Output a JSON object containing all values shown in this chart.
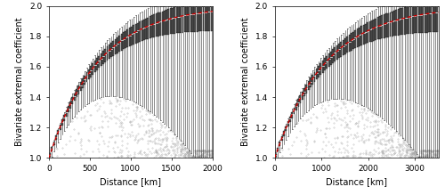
{
  "panel1": {
    "xmax": 2000,
    "xticks": [
      0,
      500,
      1000,
      1500,
      2000
    ],
    "n_bins": 80,
    "curve_scale": 600
  },
  "panel2": {
    "xmax": 3500,
    "xticks": [
      0,
      1000,
      2000,
      3000
    ],
    "n_bins": 80,
    "curve_scale": 1100
  },
  "ylim": [
    1.0,
    2.0
  ],
  "yticks": [
    1.0,
    1.2,
    1.4,
    1.6,
    1.8,
    2.0
  ],
  "ylabel": "Bivariate extremal coefficient",
  "xlabel": "Distance [km]",
  "bg_color": "#ffffff",
  "box_facecolor": "#555555",
  "box_edgecolor": "#000000",
  "whisker_color": "#333333",
  "outlier_color": "#aaaaaa",
  "dashed_color": "#cc0000",
  "label_fontsize": 7,
  "tick_fontsize": 6.5
}
